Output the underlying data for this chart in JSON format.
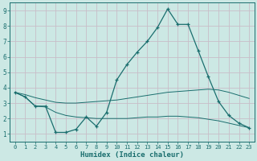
{
  "xlabel": "Humidex (Indice chaleur)",
  "bg_color": "#cce8e4",
  "grid_color": "#c8bec8",
  "line_color": "#1a6e6e",
  "xlim": [
    -0.5,
    23.5
  ],
  "ylim": [
    0.5,
    9.5
  ],
  "xticks": [
    0,
    1,
    2,
    3,
    4,
    5,
    6,
    7,
    8,
    9,
    10,
    11,
    12,
    13,
    14,
    15,
    16,
    17,
    18,
    19,
    20,
    21,
    22,
    23
  ],
  "yticks": [
    1,
    2,
    3,
    4,
    5,
    6,
    7,
    8,
    9
  ],
  "line1_x": [
    0,
    1,
    2,
    3,
    4,
    5,
    6,
    7,
    8,
    9,
    10,
    11,
    12,
    13,
    14,
    15,
    16,
    17,
    18,
    19,
    20,
    21,
    22,
    23
  ],
  "line1_y": [
    3.7,
    3.4,
    2.8,
    2.8,
    1.1,
    1.1,
    1.3,
    2.1,
    1.5,
    2.4,
    4.5,
    5.5,
    6.3,
    7.0,
    7.9,
    9.1,
    8.1,
    8.1,
    6.4,
    4.7,
    3.1,
    2.2,
    1.7,
    1.4
  ],
  "line2_x": [
    0,
    1,
    2,
    3,
    4,
    5,
    6,
    7,
    8,
    9,
    10,
    11,
    12,
    13,
    14,
    15,
    16,
    17,
    18,
    19,
    20,
    21,
    22,
    23
  ],
  "line2_y": [
    3.7,
    3.55,
    3.35,
    3.2,
    3.05,
    3.0,
    3.0,
    3.05,
    3.1,
    3.15,
    3.2,
    3.3,
    3.4,
    3.5,
    3.6,
    3.7,
    3.75,
    3.8,
    3.85,
    3.9,
    3.85,
    3.7,
    3.5,
    3.3
  ],
  "line3_x": [
    0,
    1,
    2,
    3,
    4,
    5,
    6,
    7,
    8,
    9,
    10,
    11,
    12,
    13,
    14,
    15,
    16,
    17,
    18,
    19,
    20,
    21,
    22,
    23
  ],
  "line3_y": [
    3.7,
    3.4,
    2.8,
    2.75,
    2.4,
    2.2,
    2.1,
    2.05,
    2.0,
    2.0,
    2.0,
    2.0,
    2.05,
    2.1,
    2.1,
    2.15,
    2.15,
    2.1,
    2.05,
    1.95,
    1.85,
    1.7,
    1.55,
    1.4
  ]
}
